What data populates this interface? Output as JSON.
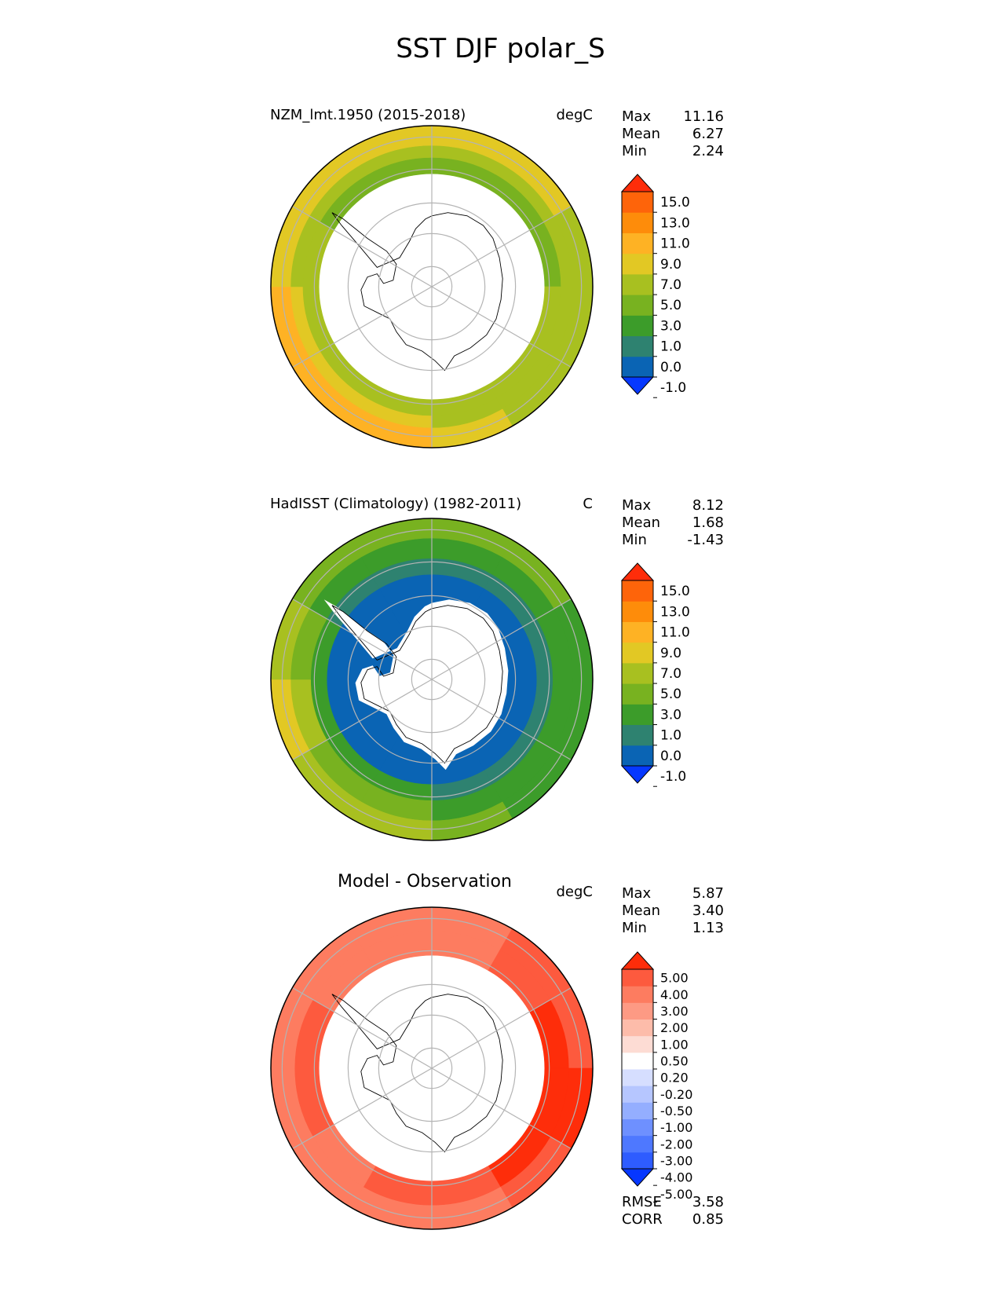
{
  "title": "SST DJF polar_S",
  "colors": {
    "sst_levels": [
      "#0638ff",
      "#0a64b4",
      "#2e8270",
      "#3c9c2a",
      "#78b220",
      "#a8c020",
      "#e2c824",
      "#feb224",
      "#fe8c0a",
      "#fe640a",
      "#fe2d0a"
    ],
    "diff_levels": [
      "#0637ff",
      "#2e5cff",
      "#4e78ff",
      "#6e90ff",
      "#94aeff",
      "#b6c6ff",
      "#d6deff",
      "#ffffff",
      "#fddcd4",
      "#fdbcaa",
      "#fd9a84",
      "#fd7c60",
      "#fd5a3e",
      "#fe2d0a"
    ],
    "land": "#ffffff",
    "grid": "#b4b4b4"
  },
  "panels": [
    {
      "title": "NZM_lmt.1950 (2015-2018)",
      "units": "degC",
      "stats": [
        {
          "label": "Max",
          "value": "11.16"
        },
        {
          "label": "Mean",
          "value": "6.27"
        },
        {
          "label": "Min",
          "value": "2.24"
        }
      ],
      "colorbar_ticks": [
        "15.0",
        "13.0",
        "11.0",
        "9.0",
        "7.0",
        "5.0",
        "3.0",
        "1.0",
        "0.0",
        "-1.0"
      ],
      "ice_edge_latitude": -62,
      "rings": [
        {
          "outer_lat": -50,
          "band_by_sector": [
            6,
            6,
            5,
            5,
            5,
            6,
            7,
            7,
            7,
            6,
            6,
            6
          ]
        },
        {
          "outer_lat": -55,
          "band_by_sector": [
            5,
            5,
            5,
            5,
            5,
            5,
            6,
            6,
            6,
            5,
            5,
            5
          ]
        },
        {
          "outer_lat": -58,
          "band_by_sector": [
            4,
            4,
            4,
            5,
            5,
            5,
            5,
            5,
            5,
            5,
            4,
            4
          ]
        }
      ]
    },
    {
      "title": "HadISST (Climatology) (1982-2011)",
      "units": "C",
      "stats": [
        {
          "label": "Max",
          "value": "8.12"
        },
        {
          "label": "Mean",
          "value": "1.68"
        },
        {
          "label": "Min",
          "value": "-1.43"
        }
      ],
      "colorbar_ticks": [
        "15.0",
        "13.0",
        "11.0",
        "9.0",
        "7.0",
        "5.0",
        "3.0",
        "1.0",
        "0.0",
        "-1.0"
      ],
      "ice_edge_latitude": -70,
      "rings": [
        {
          "outer_lat": -50,
          "band_by_sector": [
            4,
            4,
            3,
            3,
            3,
            4,
            5,
            5,
            6,
            5,
            4,
            4
          ]
        },
        {
          "outer_lat": -55,
          "band_by_sector": [
            3,
            3,
            3,
            3,
            3,
            3,
            4,
            4,
            5,
            4,
            3,
            3
          ]
        },
        {
          "outer_lat": -60,
          "band_by_sector": [
            2,
            2,
            2,
            2,
            2,
            2,
            3,
            3,
            3,
            3,
            2,
            2
          ]
        },
        {
          "outer_lat": -64,
          "band_by_sector": [
            1,
            1,
            1,
            1,
            1,
            1,
            1,
            1,
            1,
            1,
            1,
            1
          ]
        }
      ]
    },
    {
      "title": "Model - Observation",
      "units": "degC",
      "stats": [
        {
          "label": "Max",
          "value": "5.87"
        },
        {
          "label": "Mean",
          "value": "3.40"
        },
        {
          "label": "Min",
          "value": "1.13"
        }
      ],
      "colorbar_ticks": [
        "5.00",
        "4.00",
        "3.00",
        "2.00",
        "1.00",
        "0.50",
        "0.20",
        "-0.20",
        "-0.50",
        "-1.00",
        "-2.00",
        "-3.00",
        "-4.00",
        "-5.00"
      ],
      "ice_edge_latitude": -62,
      "rings": [
        {
          "outer_lat": -50,
          "band_by_sector": [
            11,
            12,
            12,
            13,
            12,
            11,
            11,
            11,
            11,
            11,
            11,
            11
          ]
        },
        {
          "outer_lat": -56,
          "band_by_sector": [
            11,
            12,
            13,
            13,
            13,
            12,
            12,
            11,
            12,
            12,
            11,
            11
          ]
        }
      ],
      "footer": [
        {
          "label": "RMSE",
          "value": "3.58"
        },
        {
          "label": "CORR",
          "value": "0.85"
        }
      ]
    }
  ]
}
